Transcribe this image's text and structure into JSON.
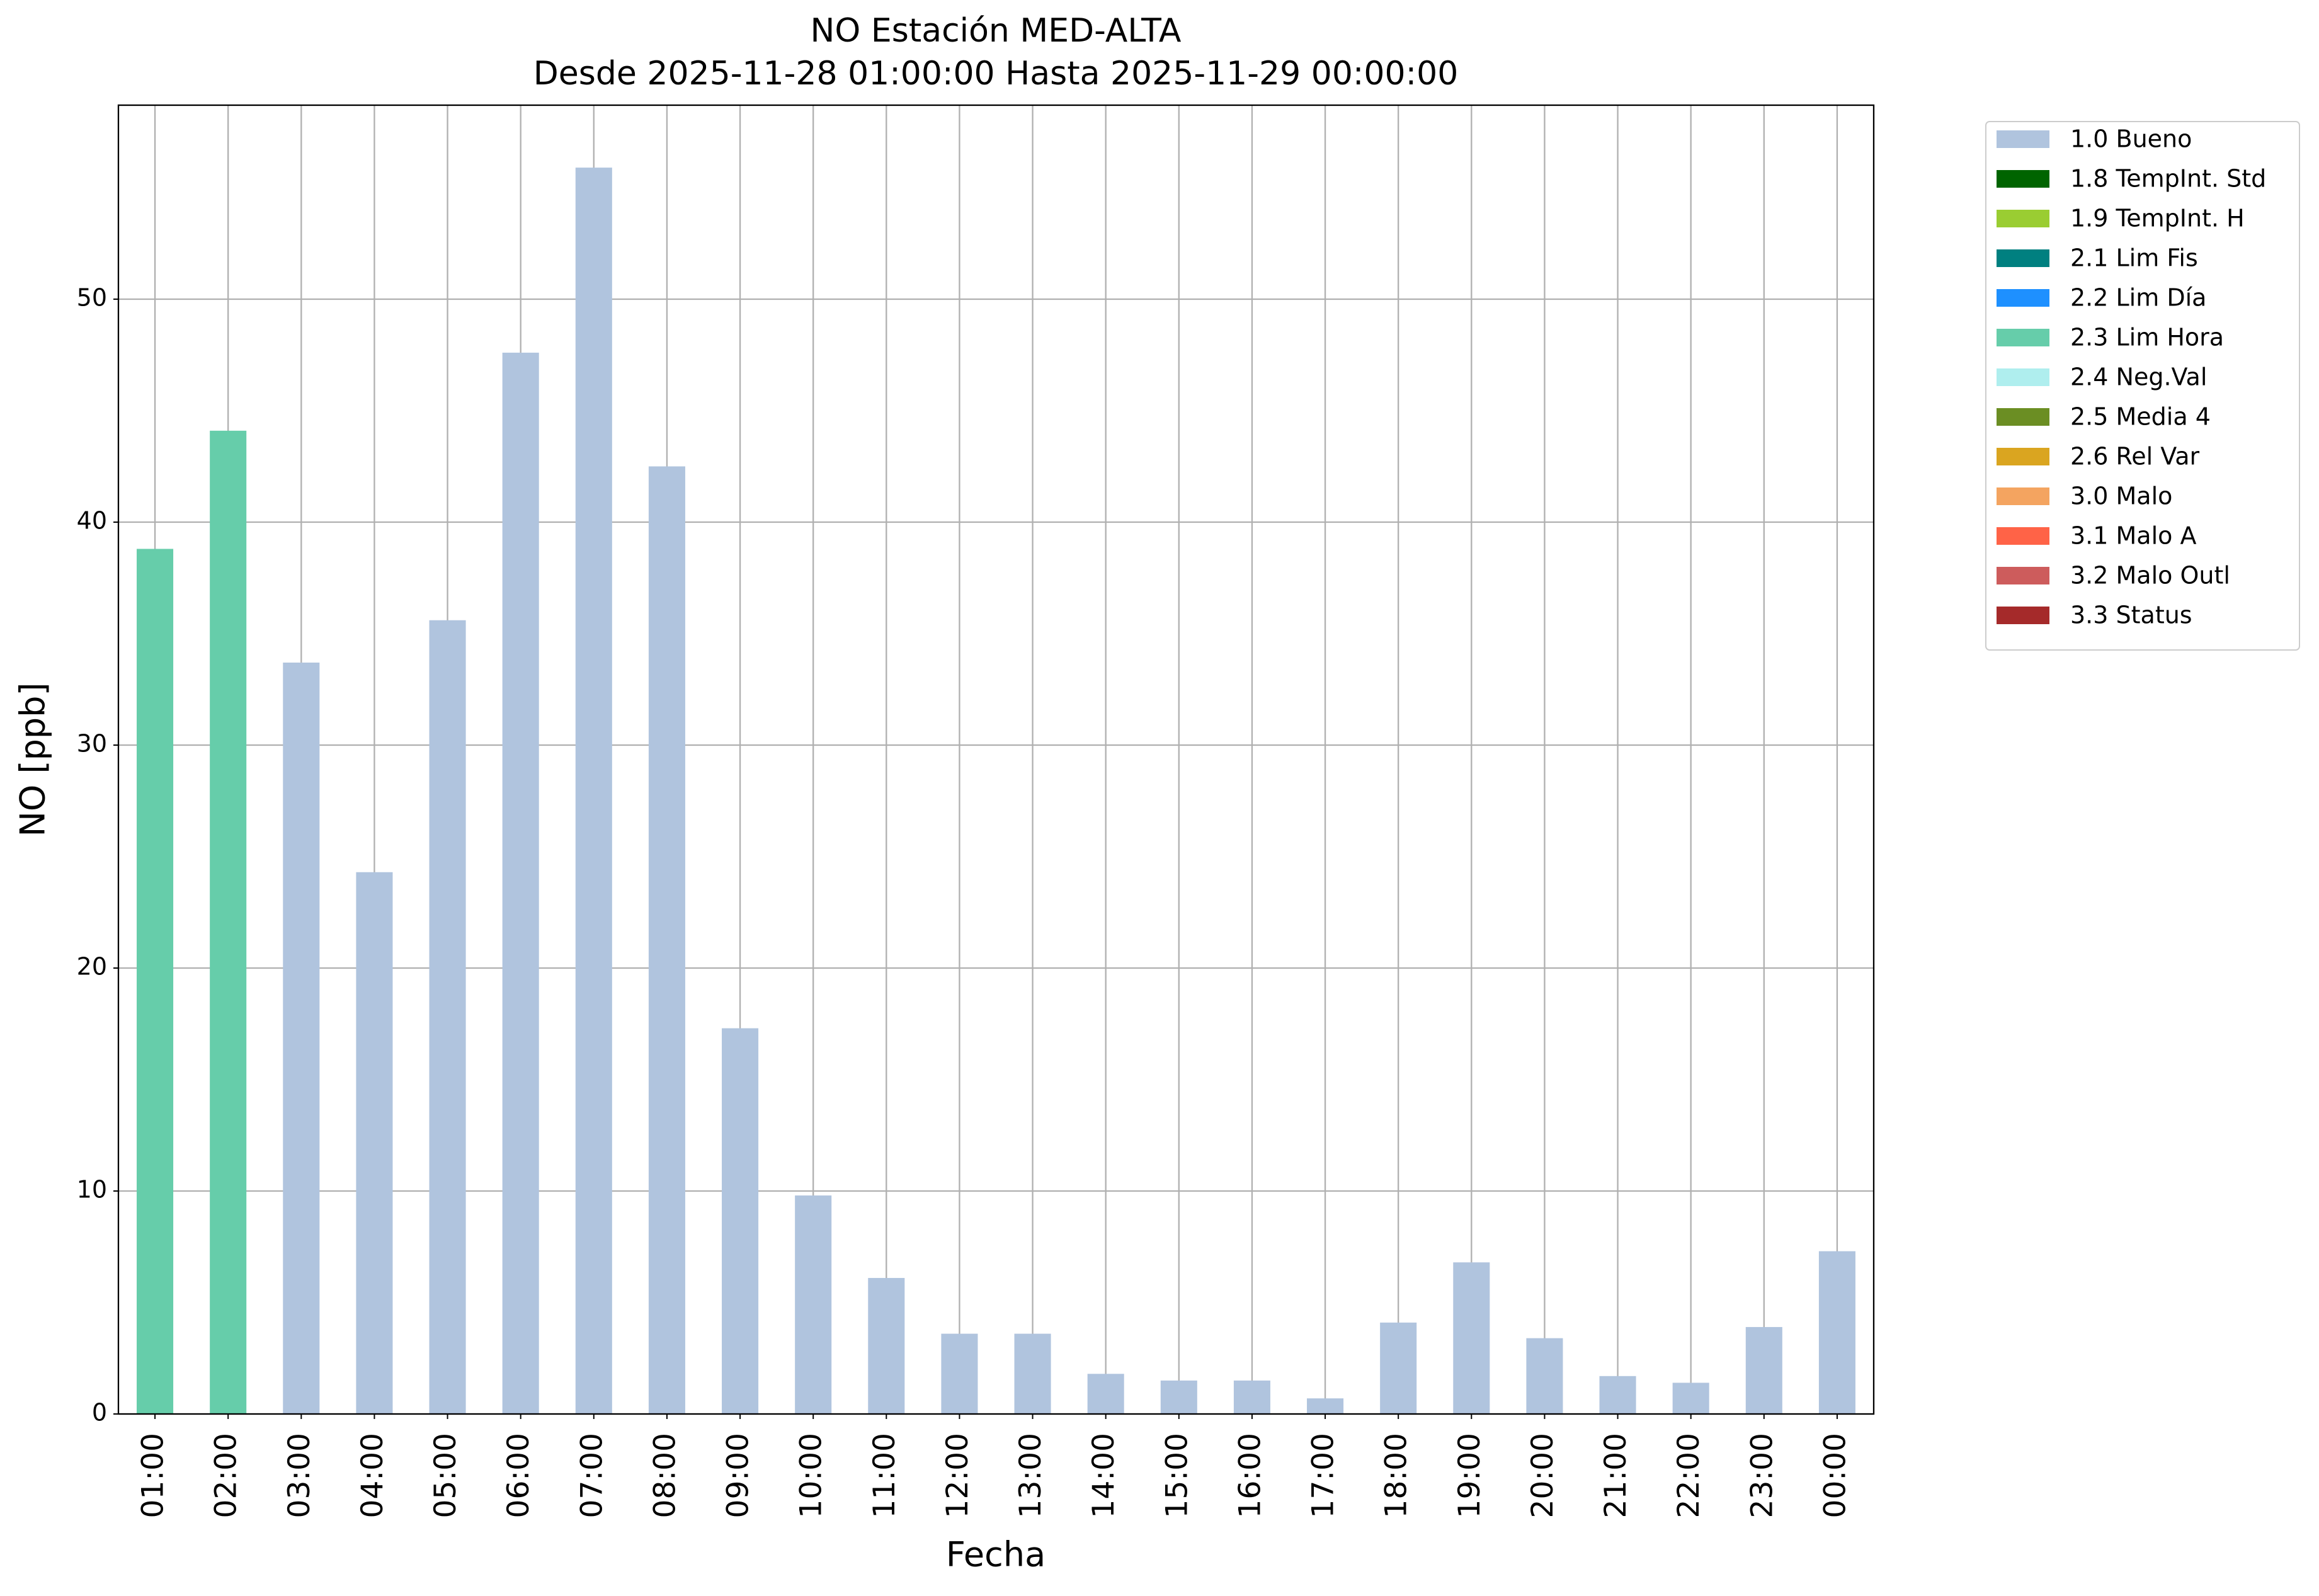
{
  "chart_data": {
    "type": "stacked_bar",
    "title": "NO Estación MED-ALTA",
    "subtitle": "Desde 2025-11-28 01:00:00 Hasta 2025-11-29 00:00:00",
    "x_label": "Fecha",
    "y_label": "NO [ppb]",
    "categories": [
      "01:00",
      "02:00",
      "03:00",
      "04:00",
      "05:00",
      "06:00",
      "07:00",
      "08:00",
      "09:00",
      "10:00",
      "11:00",
      "12:00",
      "13:00",
      "14:00",
      "15:00",
      "16:00",
      "17:00",
      "18:00",
      "19:00",
      "20:00",
      "21:00",
      "22:00",
      "23:00",
      "00:00"
    ],
    "series": [
      {
        "name": "1.0 Bueno",
        "color": "#b0c4de",
        "values": [
          null,
          null,
          33.7,
          24.3,
          35.6,
          47.6,
          55.9,
          42.5,
          17.3,
          9.8,
          6.1,
          3.6,
          3.6,
          1.8,
          1.5,
          1.5,
          0.7,
          4.1,
          6.8,
          3.4,
          1.7,
          1.4,
          3.9,
          7.3
        ]
      },
      {
        "name": "1.8 TempInt. Std",
        "color": "#006400",
        "values": [
          null,
          null,
          null,
          null,
          null,
          null,
          null,
          null,
          null,
          null,
          null,
          null,
          null,
          null,
          null,
          null,
          null,
          null,
          null,
          null,
          null,
          null,
          null,
          null
        ]
      },
      {
        "name": "1.9 TempInt. H",
        "color": "#9acd32",
        "values": [
          null,
          null,
          null,
          null,
          null,
          null,
          null,
          null,
          null,
          null,
          null,
          null,
          null,
          null,
          null,
          null,
          null,
          null,
          null,
          null,
          null,
          null,
          null,
          null
        ]
      },
      {
        "name": "2.1 Lim Fis",
        "color": "#008080",
        "values": [
          null,
          null,
          null,
          null,
          null,
          null,
          null,
          null,
          null,
          null,
          null,
          null,
          null,
          null,
          null,
          null,
          null,
          null,
          null,
          null,
          null,
          null,
          null,
          null
        ]
      },
      {
        "name": "2.2 Lim Día",
        "color": "#1e90ff",
        "values": [
          null,
          null,
          null,
          null,
          null,
          null,
          null,
          null,
          null,
          null,
          null,
          null,
          null,
          null,
          null,
          null,
          null,
          null,
          null,
          null,
          null,
          null,
          null,
          null
        ]
      },
      {
        "name": "2.3 Lim Hora",
        "color": "#66cdaa",
        "values": [
          38.8,
          44.1,
          null,
          null,
          null,
          null,
          null,
          null,
          null,
          null,
          null,
          null,
          null,
          null,
          null,
          null,
          null,
          null,
          null,
          null,
          null,
          null,
          null,
          null
        ]
      },
      {
        "name": "2.4 Neg.Val",
        "color": "#afeeee",
        "values": [
          null,
          null,
          null,
          null,
          null,
          null,
          null,
          null,
          null,
          null,
          null,
          null,
          null,
          null,
          null,
          null,
          null,
          null,
          null,
          null,
          null,
          null,
          null,
          null
        ]
      },
      {
        "name": "2.5 Media 4",
        "color": "#6b8e23",
        "values": [
          null,
          null,
          null,
          null,
          null,
          null,
          null,
          null,
          null,
          null,
          null,
          null,
          null,
          null,
          null,
          null,
          null,
          null,
          null,
          null,
          null,
          null,
          null,
          null
        ]
      },
      {
        "name": "2.6 Rel Var",
        "color": "#daa520",
        "values": [
          null,
          null,
          null,
          null,
          null,
          null,
          null,
          null,
          null,
          null,
          null,
          null,
          null,
          null,
          null,
          null,
          null,
          null,
          null,
          null,
          null,
          null,
          null,
          null
        ]
      },
      {
        "name": "3.0 Malo",
        "color": "#f4a460",
        "values": [
          null,
          null,
          null,
          null,
          null,
          null,
          null,
          null,
          null,
          null,
          null,
          null,
          null,
          null,
          null,
          null,
          null,
          null,
          null,
          null,
          null,
          null,
          null,
          null
        ]
      },
      {
        "name": "3.1 Malo A",
        "color": "#ff6347",
        "values": [
          null,
          null,
          null,
          null,
          null,
          null,
          null,
          null,
          null,
          null,
          null,
          null,
          null,
          null,
          null,
          null,
          null,
          null,
          null,
          null,
          null,
          null,
          null,
          null
        ]
      },
      {
        "name": "3.2 Malo Outl",
        "color": "#cd5c5c",
        "values": [
          null,
          null,
          null,
          null,
          null,
          null,
          null,
          null,
          null,
          null,
          null,
          null,
          null,
          null,
          null,
          null,
          null,
          null,
          null,
          null,
          null,
          null,
          null,
          null
        ]
      },
      {
        "name": "3.3 Status",
        "color": "#a52a2a",
        "values": [
          null,
          null,
          null,
          null,
          null,
          null,
          null,
          null,
          null,
          null,
          null,
          null,
          null,
          null,
          null,
          null,
          null,
          null,
          null,
          null,
          null,
          null,
          null,
          null
        ]
      }
    ],
    "ylim": [
      0,
      58.7
    ],
    "yticks": [
      0,
      10,
      20,
      30,
      40,
      50
    ],
    "grid": true,
    "legend": "outside-right"
  }
}
